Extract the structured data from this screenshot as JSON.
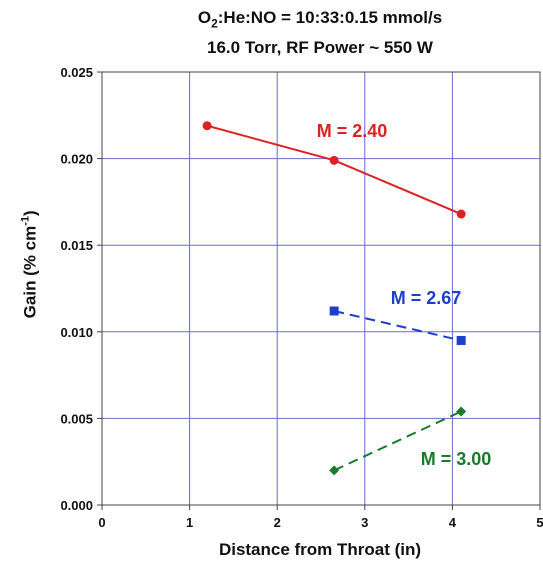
{
  "chart_data": {
    "type": "line",
    "title_line1_parts": [
      "O",
      "2",
      ":He:NO = 10:33:0.15 mmol/s"
    ],
    "title_line2": "16.0 Torr, RF Power ~ 550 W",
    "xlabel": "Distance from Throat (in)",
    "ylabel_parts": [
      "Gain (% cm",
      "-1",
      ")"
    ],
    "xlim": [
      0,
      5
    ],
    "ylim": [
      0,
      0.025
    ],
    "x_ticks": [
      "0",
      "1",
      "2",
      "3",
      "4",
      "5"
    ],
    "y_ticks": [
      "0.000",
      "0.005",
      "0.010",
      "0.015",
      "0.020",
      "0.025"
    ],
    "grid": true,
    "series": [
      {
        "name": "M = 2.40",
        "color": "#dd2222",
        "marker": "circle",
        "dash": "solid",
        "x": [
          1.2,
          2.65,
          4.1
        ],
        "y": [
          0.0219,
          0.0199,
          0.0168
        ]
      },
      {
        "name": "M = 2.67",
        "color": "#1e3fcc",
        "marker": "square",
        "dash": "dashed",
        "x": [
          2.65,
          4.1
        ],
        "y": [
          0.0112,
          0.0095
        ]
      },
      {
        "name": "M = 3.00",
        "color": "#1a7a2a",
        "marker": "diamond",
        "dash": "dashed",
        "x": [
          2.65,
          4.1
        ],
        "y": [
          0.002,
          0.0054
        ]
      }
    ]
  }
}
